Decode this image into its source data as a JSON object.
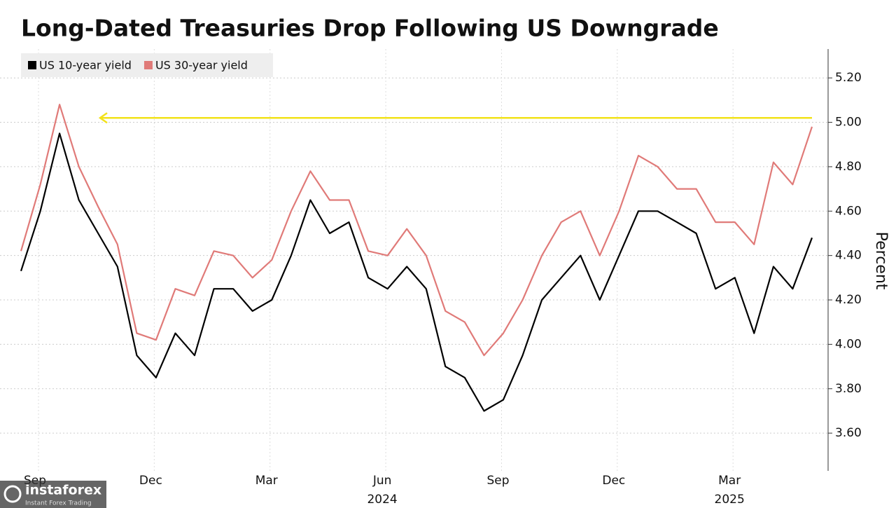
{
  "chart_data": {
    "type": "line",
    "title": "Long-Dated Treasuries Drop Following US Downgrade",
    "y_axis_label": "Percent",
    "categories": [
      "Sep",
      null,
      null,
      null,
      null,
      null,
      "Dec",
      null,
      null,
      null,
      null,
      null,
      "Mar",
      null,
      null,
      null,
      null,
      null,
      "Jun",
      null,
      null,
      null,
      null,
      null,
      "Sep",
      null,
      null,
      null,
      null,
      null,
      "Dec",
      null,
      null,
      null,
      null,
      null,
      "Mar",
      null,
      null,
      null,
      null,
      null
    ],
    "year_labels": [
      "2024",
      "2025"
    ],
    "series": [
      {
        "name": "US 10-year yield",
        "color": "#000000",
        "values": [
          4.33,
          4.6,
          4.95,
          4.65,
          4.5,
          4.35,
          3.95,
          3.85,
          4.05,
          3.95,
          4.25,
          4.25,
          4.15,
          4.2,
          4.4,
          4.65,
          4.5,
          4.55,
          4.3,
          4.25,
          4.35,
          4.25,
          3.9,
          3.85,
          3.7,
          3.75,
          3.95,
          4.2,
          4.3,
          4.4,
          4.2,
          4.4,
          4.6,
          4.6,
          4.55,
          4.5,
          4.25,
          4.3,
          4.05,
          4.35,
          4.25,
          4.48
        ]
      },
      {
        "name": "US 30-year yield",
        "color": "#e07a78",
        "values": [
          4.42,
          4.72,
          5.08,
          4.8,
          4.62,
          4.45,
          4.05,
          4.02,
          4.25,
          4.22,
          4.42,
          4.4,
          4.3,
          4.38,
          4.6,
          4.78,
          4.65,
          4.65,
          4.42,
          4.4,
          4.52,
          4.4,
          4.15,
          4.1,
          3.95,
          4.05,
          4.2,
          4.4,
          4.55,
          4.6,
          4.4,
          4.6,
          4.85,
          4.8,
          4.7,
          4.7,
          4.55,
          4.55,
          4.45,
          4.82,
          4.72,
          4.98
        ]
      }
    ],
    "reference_line": {
      "value": 5.02,
      "color": "#f2e21a"
    },
    "ylim": [
      3.43,
      5.33
    ],
    "yticks": [
      {
        "value": 3.6,
        "label": "3.60"
      },
      {
        "value": 3.8,
        "label": "3.80"
      },
      {
        "value": 4.0,
        "label": "4.00"
      },
      {
        "value": 4.2,
        "label": "4.20"
      },
      {
        "value": 4.4,
        "label": "4.40"
      },
      {
        "value": 4.6,
        "label": "4.60"
      },
      {
        "value": 4.8,
        "label": "4.80"
      },
      {
        "value": 5.0,
        "label": "5.00"
      },
      {
        "value": 5.2,
        "label": "5.20"
      }
    ],
    "grid": true,
    "legend": "top-left"
  },
  "watermark": {
    "brand": "instaforex",
    "tagline": "Instant Forex Trading"
  }
}
